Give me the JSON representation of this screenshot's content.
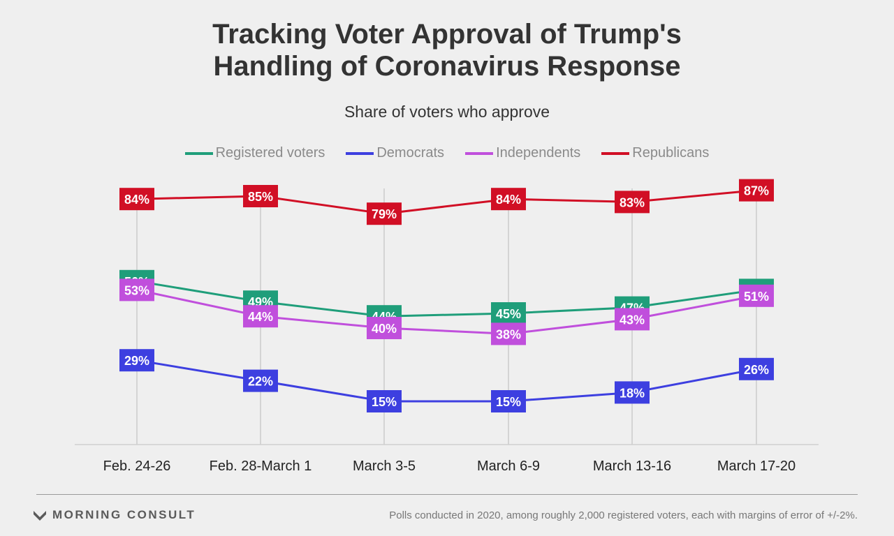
{
  "title_line1": "Tracking Voter Approval of Trump's",
  "title_line2": "Handling of Coronavirus Response",
  "subtitle": "Share of voters who approve",
  "footer": {
    "brand": "MORNING CONSULT",
    "note": "Polls conducted in 2020, among roughly 2,000 registered voters, each with margins of error of +/-2%."
  },
  "chart_data": {
    "type": "line",
    "title": "Tracking Voter Approval of Trump's Handling of Coronavirus Response",
    "subtitle": "Share of voters who approve",
    "categories": [
      "Feb. 24-26",
      "Feb. 28-March 1",
      "March 3-5",
      "March 6-9",
      "March 13-16",
      "March 17-20"
    ],
    "unit": "%",
    "ylim": [
      0,
      100
    ],
    "grid": "vertical",
    "legend_position": "top",
    "series": [
      {
        "name": "Registered voters",
        "color": "#1f9e7a",
        "values": [
          56,
          49,
          44,
          45,
          47,
          53
        ]
      },
      {
        "name": "Democrats",
        "color": "#3d3fe0",
        "values": [
          29,
          22,
          15,
          15,
          18,
          26
        ]
      },
      {
        "name": "Independents",
        "color": "#c04fdc",
        "values": [
          53,
          44,
          40,
          38,
          43,
          51
        ]
      },
      {
        "name": "Republicans",
        "color": "#d10f25",
        "values": [
          84,
          85,
          79,
          84,
          83,
          87
        ]
      }
    ]
  }
}
